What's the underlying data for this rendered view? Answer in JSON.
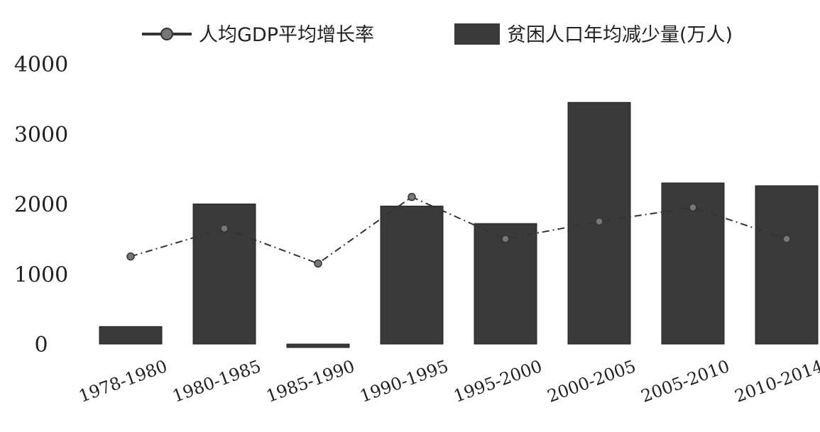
{
  "chart_data": {
    "type": "bar",
    "categories": [
      "1978-1980",
      "1980-1985",
      "1985-1990",
      "1990-1995",
      "1995-2000",
      "2000-2005",
      "2005-2010",
      "2010-2014"
    ],
    "series": [
      {
        "name": "贫困人口年均减少量(万人)",
        "kind": "bar",
        "values": [
          250,
          2000,
          -50,
          1970,
          1720,
          3450,
          2300,
          2260
        ]
      },
      {
        "name": "人均GDP平均增长率",
        "kind": "line",
        "values": [
          1250,
          1650,
          1150,
          2100,
          1500,
          1750,
          1950,
          1500
        ]
      }
    ],
    "ylim": [
      0,
      4000
    ],
    "yticks": [
      4000,
      3000,
      2000,
      1000,
      0
    ],
    "legend_position": "top",
    "grid": false,
    "colors": {
      "bar": "#3a3a3a",
      "line": "#333333",
      "marker": "#777777"
    }
  }
}
